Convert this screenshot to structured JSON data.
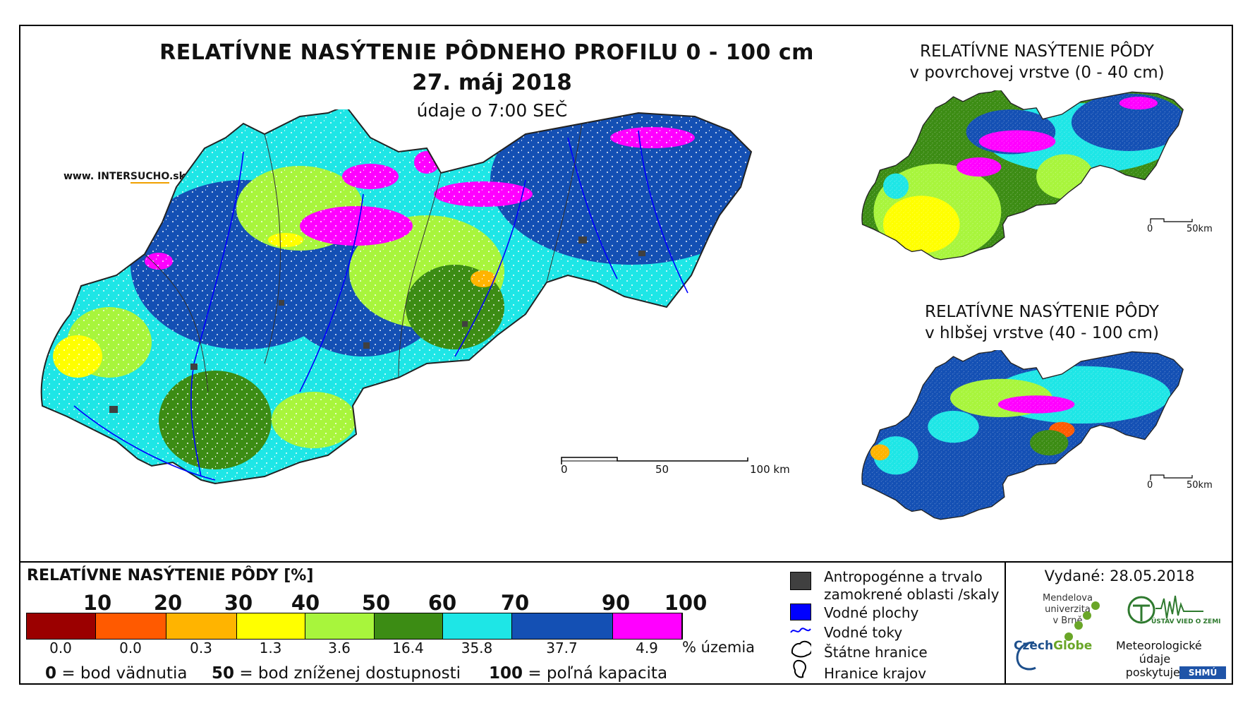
{
  "title": "RELATÍVNE NASÝTENIE PÔDNEHO PROFILU 0 - 100 cm",
  "date": "27. máj 2018",
  "time_note": "údaje o 7:00 SEČ",
  "website": {
    "prefix": "www. INTER",
    "highlight": "SUCHO",
    "suffix": ".sk"
  },
  "main_scale": {
    "labels": [
      "0",
      "50",
      "100 km"
    ]
  },
  "inset_top": {
    "line1": "RELATÍVNE NASÝTENIE PÔDY",
    "line2": "v povrchovej vrstve (0 - 40 cm)",
    "scale": [
      "0",
      "50km"
    ]
  },
  "inset_bottom": {
    "line1": "RELATÍVNE NASÝTENIE PÔDY",
    "line2": "v hlbšej vrstve (40 - 100 cm)",
    "scale": [
      "0",
      "50km"
    ]
  },
  "legend": {
    "title": "RELATÍVNE NASÝTENIE PÔDY [%]",
    "thresholds": [
      "10",
      "20",
      "30",
      "40",
      "50",
      "60",
      "70",
      "90",
      "100"
    ],
    "classes": [
      {
        "color": "#9b0000",
        "share": "0.0"
      },
      {
        "color": "#ff5a00",
        "share": "0.0"
      },
      {
        "color": "#ffb400",
        "share": "0.3"
      },
      {
        "color": "#ffff00",
        "share": "1.3"
      },
      {
        "color": "#a8f53c",
        "share": "3.6"
      },
      {
        "color": "#3c8c14",
        "share": "16.4"
      },
      {
        "color": "#1ee6e6",
        "share": "35.8"
      },
      {
        "color": "#1450b4",
        "share": "37.7"
      },
      {
        "color": "#ff00ff",
        "share": "4.9"
      }
    ],
    "share_unit": "% územia",
    "footnotes": [
      {
        "value": "0",
        "text": "= bod vädnutia"
      },
      {
        "value": "50",
        "text": "= bod zníženej dostupnosti"
      },
      {
        "value": "100",
        "text": "= poľná kapacita"
      }
    ]
  },
  "symbols": [
    {
      "icon": "anthropogenic-area-icon",
      "label_1": "Antropogénne a trvalo",
      "label_2": "zamokrené oblasti /skaly"
    },
    {
      "icon": "water-body-icon",
      "label_1": "Vodné plochy"
    },
    {
      "icon": "river-icon",
      "label_1": "Vodné toky"
    },
    {
      "icon": "state-border-icon",
      "label_1": "Štátne hranice"
    },
    {
      "icon": "region-border-icon",
      "label_1": "Hranice krajov"
    }
  ],
  "issued": "Vydané: 28.05.2018",
  "logos": {
    "mendel": [
      "Mendelova",
      "univerzita",
      "v Brně"
    ],
    "czechglobe": {
      "a": "Czech",
      "b": "Globe"
    },
    "uvz": "ÚSTAV VIED O ZEMI",
    "meteo": [
      "Meteorologické",
      "údaje",
      "poskytuje:"
    ],
    "shmu": "SHMÚ"
  },
  "colors": {
    "frame": "#000000",
    "river": "#0000ff",
    "anthro": "#404040"
  }
}
